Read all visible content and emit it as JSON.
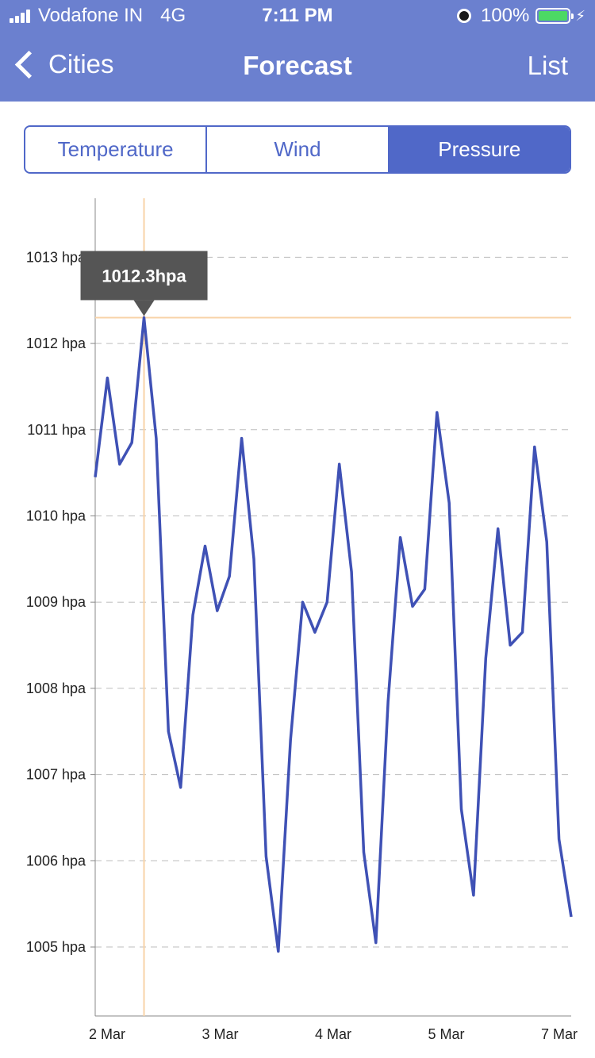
{
  "status_bar": {
    "carrier": "Vodafone IN",
    "network": "4G",
    "time": "7:11 PM",
    "battery": "100%",
    "icons": [
      "signal-icon",
      "alarm-icon",
      "battery-icon",
      "bolt-icon"
    ],
    "battery_color": "#4cd964"
  },
  "nav": {
    "back_label": "Cities",
    "title": "Forecast",
    "right_label": "List",
    "background": "#6b80cf"
  },
  "tabs": [
    {
      "label": "Temperature",
      "active": false
    },
    {
      "label": "Wind",
      "active": false
    },
    {
      "label": "Pressure",
      "active": true
    }
  ],
  "accent_color": "#5068c8",
  "chart_data": {
    "type": "line",
    "title": "",
    "xlabel": "",
    "ylabel": "",
    "x_tick_labels": [
      "2 Mar",
      "3 Mar",
      "4 Mar",
      "5 Mar",
      "7 Mar"
    ],
    "y_tick_labels": [
      "1005 hpa",
      "1006 hpa",
      "1007 hpa",
      "1008 hpa",
      "1009 hpa",
      "1010 hpa",
      "1011 hpa",
      "1012 hpa",
      "1013 hpa"
    ],
    "y_ticks": [
      1005,
      1006,
      1007,
      1008,
      1009,
      1010,
      1011,
      1012,
      1013
    ],
    "ylim": [
      1004.2,
      1013.5
    ],
    "grid": "horizontal-dashed",
    "line_color": "#3f51b5",
    "highlight_color": "#f8d3a8",
    "selected_index": 4,
    "tooltip": "1012.3hpa",
    "series": [
      {
        "values": [
          1010.45,
          1011.6,
          1010.6,
          1010.85,
          1012.3,
          1010.9,
          1007.5,
          1006.85,
          1008.85,
          1009.65,
          1008.9,
          1009.3,
          1010.9,
          1009.5,
          1006.05,
          1004.95,
          1007.4,
          1009.0,
          1008.65,
          1009.0,
          1010.6,
          1009.35,
          1006.1,
          1005.05,
          1007.85,
          1009.75,
          1008.95,
          1009.15,
          1011.2,
          1010.15,
          1006.6,
          1005.6,
          1008.35,
          1009.85,
          1008.5,
          1008.65,
          1010.8,
          1009.7,
          1006.25,
          1005.35
        ]
      }
    ]
  }
}
